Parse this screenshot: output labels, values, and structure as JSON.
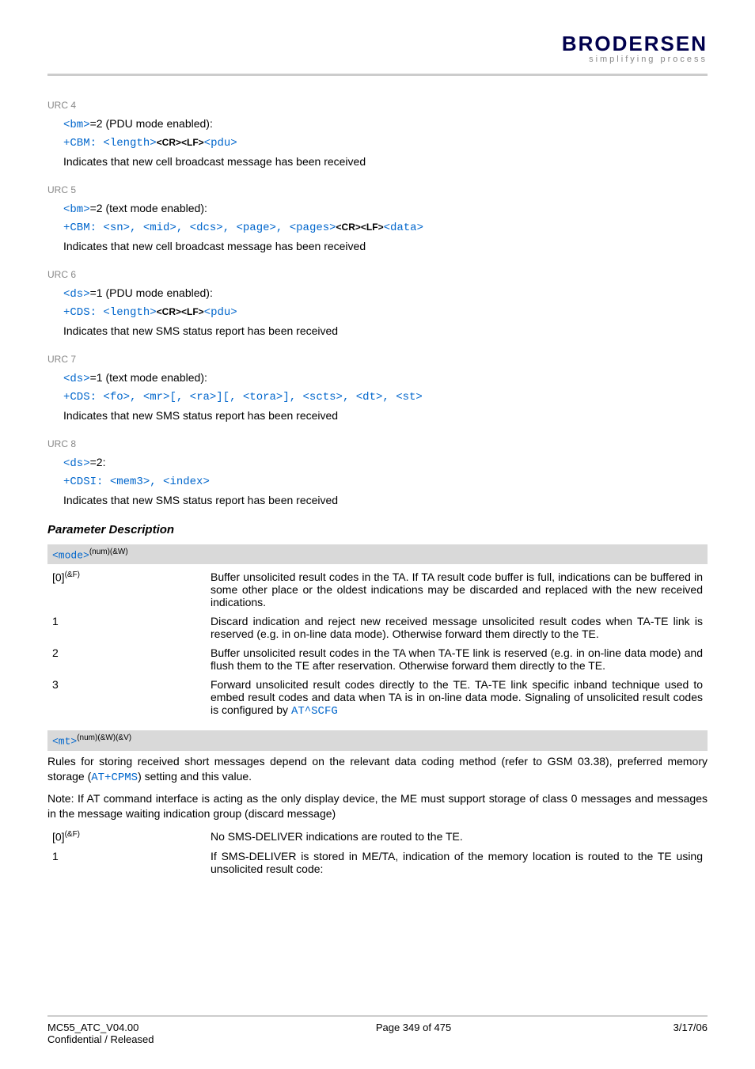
{
  "header": {
    "brand": "BRODERSEN",
    "tagline": "simplifying process"
  },
  "urc": [
    {
      "label": "URC 4",
      "pre": {
        "ref": "<bm>",
        "rest": "=2 (PDU mode enabled):"
      },
      "cmd_parts": [
        "+CBM: ",
        "<length>",
        "CRLF",
        "<pdu>"
      ],
      "desc": "Indicates that new cell broadcast message has been received"
    },
    {
      "label": "URC 5",
      "pre": {
        "ref": "<bm>",
        "rest": "=2 (text mode enabled):"
      },
      "cmd_parts": [
        "+CBM: ",
        "<sn>",
        ", ",
        "<mid>",
        ", ",
        "<dcs>",
        ", ",
        "<page>",
        ", ",
        "<pages>",
        "CRLF",
        "<data>"
      ],
      "desc": "Indicates that new cell broadcast message has been received"
    },
    {
      "label": "URC 6",
      "pre": {
        "ref": "<ds>",
        "rest": "=1 (PDU mode enabled):"
      },
      "cmd_parts": [
        "+CDS: ",
        "<length>",
        "CRLF",
        "<pdu>"
      ],
      "desc": "Indicates that new SMS status report has been received"
    },
    {
      "label": "URC 7",
      "pre": {
        "ref": "<ds>",
        "rest": "=1 (text mode enabled):"
      },
      "cmd_parts": [
        "+CDS: ",
        "<fo>",
        ", ",
        "<mr>",
        "[, ",
        "<ra>",
        "][, ",
        "<tora>",
        "], ",
        "<scts>",
        ", ",
        "<dt>",
        ", ",
        "<st>"
      ],
      "desc": "Indicates that new SMS status report has been received"
    },
    {
      "label": "URC 8",
      "pre": {
        "ref": "<ds>",
        "rest": "=2:"
      },
      "cmd_parts": [
        "+CDSI: ",
        "<mem3>",
        ", ",
        "<index>"
      ],
      "desc": "Indicates that new SMS status report has been received"
    }
  ],
  "param_desc_title": "Parameter Description",
  "mode_param": {
    "name": "<mode>",
    "sup": "(num)(&W)",
    "rows": [
      {
        "key": "[0]",
        "keysup": "(&F)",
        "val": "Buffer unsolicited result codes in the TA. If TA result code buffer is full, indications can be buffered in some other place or the oldest indications may be discarded and replaced with the new received indications."
      },
      {
        "key": "1",
        "val": "Discard indication and reject new received message unsolicited result codes when TA-TE link is reserved (e.g. in on-line data mode). Otherwise forward them directly to the TE."
      },
      {
        "key": "2",
        "val": "Buffer unsolicited result codes in the TA when TA-TE link is reserved (e.g. in on-line data mode) and flush them to the TE after reservation. Otherwise forward them directly to the TE."
      },
      {
        "key": "3",
        "val_pre": "Forward unsolicited result codes directly to the TE. TA-TE link specific inband technique used to embed result codes and data when TA is in on-line data mode. Signaling of unsolicited result codes is configured by ",
        "link": "AT^SCFG"
      }
    ]
  },
  "mt_param": {
    "name": "<mt>",
    "sup": "(num)(&W)(&V)",
    "note_pre": "Rules for storing received short messages depend on the relevant data coding method (refer to GSM 03.38), preferred memory storage (",
    "note_link": "AT+CPMS",
    "note_post": ") setting and this value.",
    "note2": "Note: If AT command interface is acting as the only display device, the ME must support storage of class 0 messages and messages in the message waiting indication group (discard message)",
    "rows": [
      {
        "key": "[0]",
        "keysup": "(&F)",
        "val": "No SMS-DELIVER indications are routed to the TE."
      },
      {
        "key": "1",
        "val": "If SMS-DELIVER is stored in ME/TA, indication of the memory location is routed to the TE using unsolicited result code:"
      }
    ]
  },
  "footer": {
    "left1": "MC55_ATC_V04.00",
    "left2": "Confidential / Released",
    "center": "Page 349 of 475",
    "right": "3/17/06"
  }
}
